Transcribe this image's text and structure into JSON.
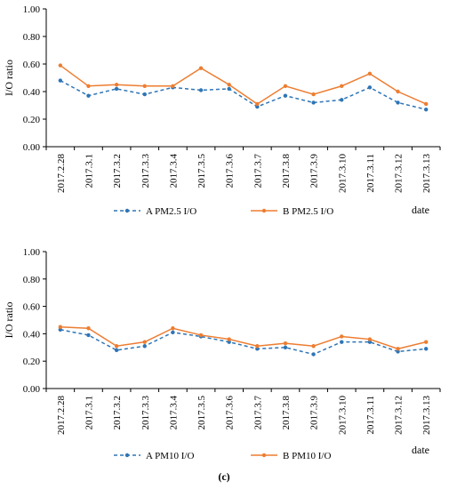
{
  "chart_data": [
    {
      "type": "line",
      "categories": [
        "2017.2.28",
        "2017.3.1",
        "2017.3.2",
        "2017.3.3",
        "2017.3.4",
        "2017.3.5",
        "2017.3.6",
        "2017.3.7",
        "2017.3.8",
        "2017.3.9",
        "2017.3.10",
        "2017.3.11",
        "2017.3.12",
        "2017.3.13"
      ],
      "series": [
        {
          "name": "A  PM2.5 I/O",
          "color": "#2e75b6",
          "style": "dashed",
          "values": [
            0.48,
            0.37,
            0.42,
            0.38,
            0.43,
            0.41,
            0.42,
            0.29,
            0.37,
            0.32,
            0.34,
            0.43,
            0.32,
            0.27
          ]
        },
        {
          "name": "B  PM2.5 I/O",
          "color": "#ed7d31",
          "style": "solid",
          "values": [
            0.59,
            0.44,
            0.45,
            0.44,
            0.44,
            0.57,
            0.45,
            0.31,
            0.44,
            0.38,
            0.44,
            0.53,
            0.4,
            0.31
          ]
        }
      ],
      "ylabel": "I/O ratio",
      "xlabel": "date",
      "ylim": [
        0,
        1.0
      ],
      "yticks": [
        "0.00",
        "0.20",
        "0.40",
        "0.60",
        "0.80",
        "1.00"
      ],
      "legend_position": "bottom"
    },
    {
      "type": "line",
      "categories": [
        "2017.2.28",
        "2017.3.1",
        "2017.3.2",
        "2017.3.3",
        "2017.3.4",
        "2017.3.5",
        "2017.3.6",
        "2017.3.7",
        "2017.3.8",
        "2017.3.9",
        "2017.3.10",
        "2017.3.11",
        "2017.3.12",
        "2017.3.13"
      ],
      "series": [
        {
          "name": "A  PM10  I/O",
          "color": "#2e75b6",
          "style": "dashed",
          "values": [
            0.43,
            0.39,
            0.28,
            0.31,
            0.41,
            0.38,
            0.34,
            0.29,
            0.3,
            0.25,
            0.34,
            0.34,
            0.27,
            0.29
          ]
        },
        {
          "name": "B  PM10  I/O",
          "color": "#ed7d31",
          "style": "solid",
          "values": [
            0.45,
            0.44,
            0.31,
            0.34,
            0.44,
            0.39,
            0.36,
            0.31,
            0.33,
            0.31,
            0.38,
            0.36,
            0.29,
            0.34
          ]
        }
      ],
      "ylabel": "I/O ratio",
      "xlabel": "date",
      "ylim": [
        0,
        1.0
      ],
      "yticks": [
        "0.00",
        "0.20",
        "0.40",
        "0.60",
        "0.80",
        "1.00"
      ],
      "legend_position": "bottom"
    }
  ],
  "caption": "(c)"
}
